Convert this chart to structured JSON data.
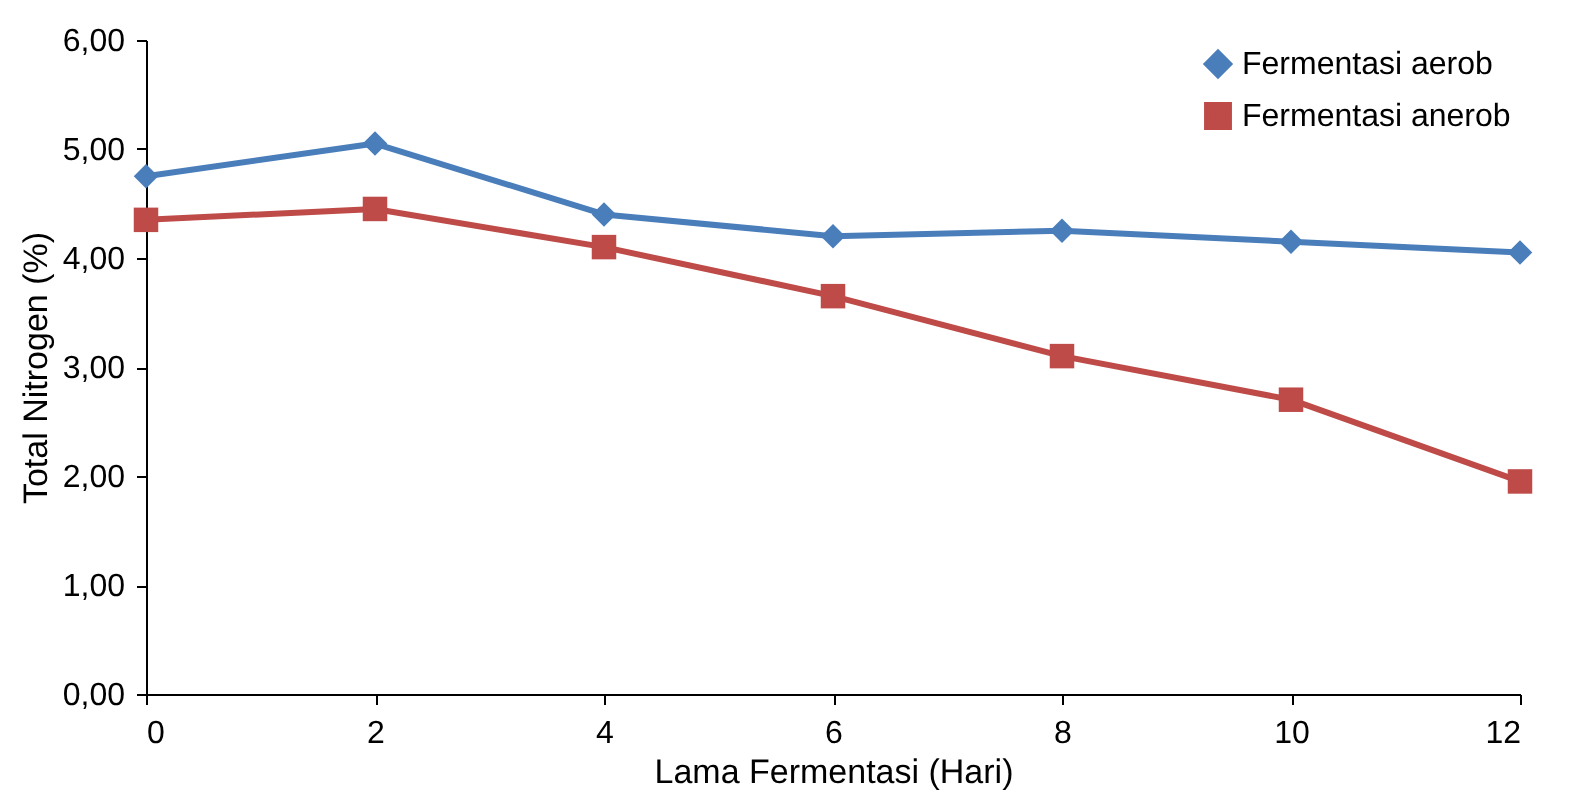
{
  "chart_data": {
    "type": "line",
    "xlabel": "Lama Fermentasi (Hari)",
    "ylabel": "Total Nitrogen (%)",
    "x": [
      0,
      2,
      4,
      6,
      8,
      10,
      12
    ],
    "xlim": [
      0,
      12
    ],
    "xticks": [
      0,
      2,
      4,
      6,
      8,
      10,
      12
    ],
    "ylim": [
      0,
      6
    ],
    "yticks": [
      {
        "value": 0,
        "label": "0,00"
      },
      {
        "value": 1,
        "label": "1,00"
      },
      {
        "value": 2,
        "label": "2,00"
      },
      {
        "value": 3,
        "label": "3,00"
      },
      {
        "value": 4,
        "label": "4,00"
      },
      {
        "value": 5,
        "label": "5,00"
      },
      {
        "value": 6,
        "label": "6,00"
      }
    ],
    "series": [
      {
        "name": "Fermentasi aerob",
        "color": "#4a7ebb",
        "marker": "diamond",
        "values": [
          4.75,
          5.05,
          4.4,
          4.2,
          4.25,
          4.15,
          4.05
        ]
      },
      {
        "name": "Fermentasi anerob",
        "color": "#be4b48",
        "marker": "square",
        "values": [
          4.35,
          4.45,
          4.1,
          3.65,
          3.1,
          2.7,
          1.95
        ]
      }
    ],
    "legend": "top right",
    "grid": false
  }
}
